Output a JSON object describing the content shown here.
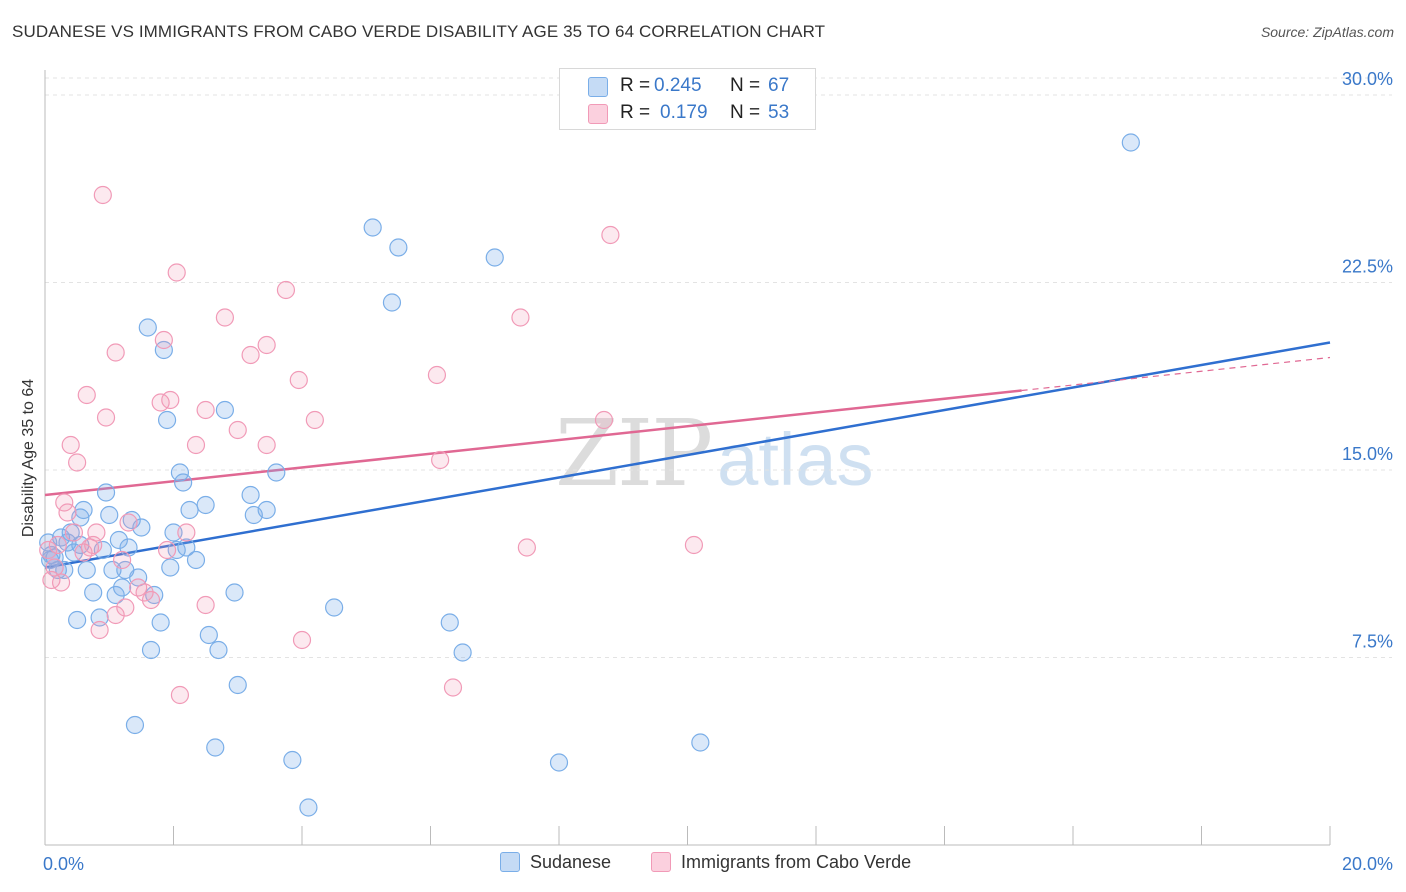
{
  "title": "SUDANESE VS IMMIGRANTS FROM CABO VERDE DISABILITY AGE 35 TO 64 CORRELATION CHART",
  "source": "Source: ZipAtlas.com",
  "watermark": {
    "zip": "ZIP",
    "atlas": "atlas"
  },
  "legend": {
    "r_label": "R =",
    "n_label": "N =",
    "rows": [
      {
        "r": "0.245",
        "n": "67",
        "color": "#7aaee8"
      },
      {
        "r": "0.179",
        "n": "53",
        "color": "#f19ab7"
      }
    ]
  },
  "bottom_legend": [
    {
      "label": "Sudanese",
      "color": "#7aaee8"
    },
    {
      "label": "Immigrants from Cabo Verde",
      "color": "#f19ab7"
    }
  ],
  "chart_data": {
    "type": "scatter",
    "title": "SUDANESE VS IMMIGRANTS FROM CABO VERDE DISABILITY AGE 35 TO 64 CORRELATION CHART",
    "xlabel": "",
    "ylabel": "Disability Age 35 to 64",
    "xlim": [
      0,
      20
    ],
    "ylim": [
      0,
      31
    ],
    "x_tick_labels": [
      {
        "value": 0,
        "label": "0.0%"
      },
      {
        "value": 20,
        "label": "20.0%"
      }
    ],
    "y_tick_labels": [
      {
        "value": 7.5,
        "label": "7.5%"
      },
      {
        "value": 15,
        "label": "15.0%"
      },
      {
        "value": 22.5,
        "label": "22.5%"
      },
      {
        "value": 30,
        "label": "30.0%"
      }
    ],
    "series": [
      {
        "name": "Sudanese",
        "color": "#7aaee8",
        "line_color": "#2f6fd0",
        "trend": {
          "x0": 0,
          "y0": 11.1,
          "x1": 20,
          "y1": 20.1,
          "dashed_from": null
        },
        "points": [
          [
            0.05,
            12.1
          ],
          [
            0.1,
            11.6
          ],
          [
            0.15,
            11.5
          ],
          [
            0.2,
            11.0
          ],
          [
            0.25,
            12.3
          ],
          [
            0.3,
            11.0
          ],
          [
            0.35,
            12.1
          ],
          [
            0.4,
            12.5
          ],
          [
            0.45,
            11.7
          ],
          [
            0.5,
            9.0
          ],
          [
            0.55,
            13.1
          ],
          [
            0.6,
            13.4
          ],
          [
            0.65,
            11.0
          ],
          [
            0.75,
            10.1
          ],
          [
            0.85,
            9.1
          ],
          [
            0.9,
            11.8
          ],
          [
            0.95,
            14.1
          ],
          [
            1.0,
            13.2
          ],
          [
            1.05,
            11.0
          ],
          [
            1.1,
            10.0
          ],
          [
            1.15,
            12.2
          ],
          [
            1.2,
            10.3
          ],
          [
            1.25,
            11.0
          ],
          [
            1.3,
            11.9
          ],
          [
            1.35,
            13.0
          ],
          [
            1.4,
            4.8
          ],
          [
            1.45,
            10.7
          ],
          [
            1.5,
            12.7
          ],
          [
            1.6,
            20.7
          ],
          [
            1.65,
            7.8
          ],
          [
            1.7,
            10.0
          ],
          [
            1.8,
            8.9
          ],
          [
            1.85,
            19.8
          ],
          [
            1.9,
            17.0
          ],
          [
            1.95,
            11.1
          ],
          [
            2.0,
            12.5
          ],
          [
            2.05,
            11.8
          ],
          [
            2.1,
            14.9
          ],
          [
            2.15,
            14.5
          ],
          [
            2.25,
            13.4
          ],
          [
            2.35,
            11.4
          ],
          [
            2.5,
            13.6
          ],
          [
            2.55,
            8.4
          ],
          [
            2.65,
            3.9
          ],
          [
            2.7,
            7.8
          ],
          [
            2.8,
            17.4
          ],
          [
            2.95,
            10.1
          ],
          [
            3.0,
            6.4
          ],
          [
            3.2,
            14.0
          ],
          [
            3.25,
            13.2
          ],
          [
            3.45,
            13.4
          ],
          [
            3.6,
            14.9
          ],
          [
            3.85,
            3.4
          ],
          [
            4.1,
            1.5
          ],
          [
            4.5,
            9.5
          ],
          [
            5.1,
            24.7
          ],
          [
            5.4,
            21.7
          ],
          [
            5.5,
            23.9
          ],
          [
            6.3,
            8.9
          ],
          [
            6.5,
            7.7
          ],
          [
            7.0,
            23.5
          ],
          [
            8.0,
            3.3
          ],
          [
            10.2,
            4.1
          ],
          [
            16.9,
            28.1
          ],
          [
            0.08,
            11.4
          ],
          [
            0.55,
            12.0
          ],
          [
            2.2,
            11.9
          ]
        ]
      },
      {
        "name": "Immigrants from Cabo Verde",
        "color": "#f19ab7",
        "line_color": "#e06893",
        "trend": {
          "x0": 0,
          "y0": 14.0,
          "x1": 20,
          "y1": 19.5,
          "dashed_from": 15.2
        },
        "points": [
          [
            0.05,
            11.8
          ],
          [
            0.1,
            10.6
          ],
          [
            0.15,
            11.1
          ],
          [
            0.2,
            12.0
          ],
          [
            0.25,
            10.5
          ],
          [
            0.3,
            13.7
          ],
          [
            0.35,
            13.3
          ],
          [
            0.4,
            16.0
          ],
          [
            0.45,
            12.5
          ],
          [
            0.5,
            15.3
          ],
          [
            0.6,
            11.7
          ],
          [
            0.65,
            18.0
          ],
          [
            0.7,
            11.9
          ],
          [
            0.75,
            12.0
          ],
          [
            0.8,
            12.5
          ],
          [
            0.85,
            8.6
          ],
          [
            0.9,
            26.0
          ],
          [
            0.95,
            17.1
          ],
          [
            1.1,
            9.2
          ],
          [
            1.1,
            19.7
          ],
          [
            1.2,
            11.4
          ],
          [
            1.25,
            9.5
          ],
          [
            1.3,
            12.9
          ],
          [
            1.45,
            10.3
          ],
          [
            1.55,
            10.1
          ],
          [
            1.65,
            9.8
          ],
          [
            1.8,
            17.7
          ],
          [
            1.85,
            20.2
          ],
          [
            1.9,
            11.8
          ],
          [
            1.95,
            17.8
          ],
          [
            2.05,
            22.9
          ],
          [
            2.1,
            6.0
          ],
          [
            2.2,
            12.5
          ],
          [
            2.35,
            16.0
          ],
          [
            2.5,
            17.4
          ],
          [
            2.5,
            9.6
          ],
          [
            2.8,
            21.1
          ],
          [
            3.0,
            16.6
          ],
          [
            3.2,
            19.6
          ],
          [
            3.45,
            16.0
          ],
          [
            3.45,
            20.0
          ],
          [
            3.75,
            22.2
          ],
          [
            3.95,
            18.6
          ],
          [
            4.0,
            8.2
          ],
          [
            4.2,
            17.0
          ],
          [
            6.1,
            18.8
          ],
          [
            6.15,
            15.4
          ],
          [
            6.35,
            6.3
          ],
          [
            7.4,
            21.1
          ],
          [
            7.5,
            11.9
          ],
          [
            8.7,
            17.0
          ],
          [
            8.8,
            24.4
          ],
          [
            10.1,
            12.0
          ]
        ]
      }
    ]
  }
}
